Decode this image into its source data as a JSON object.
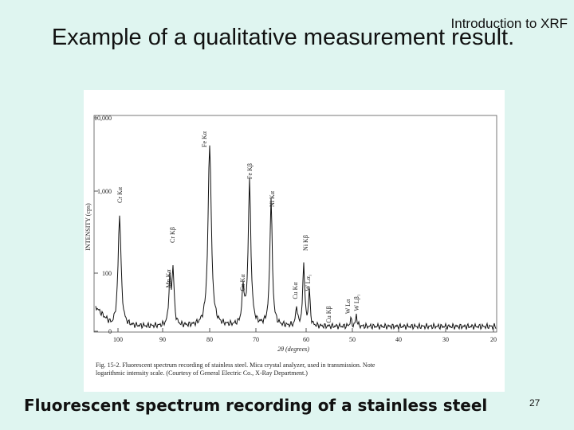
{
  "header": {
    "title": "Example of a qualitative measurement result.",
    "section": "Introduction to XRF"
  },
  "figure": {
    "y_axis_label": "INTENSITY (cps)",
    "x_axis_label": "2θ (degrees)",
    "y_ticks": [
      "10,000",
      "1,000",
      100,
      0
    ],
    "x_ticks": [
      100,
      90,
      80,
      70,
      60,
      50,
      40,
      30,
      20
    ],
    "peak_labels": [
      "Cr Kα",
      "Mn Kα",
      "Cr Kβ",
      "Fe Kα",
      "Fe Kβ",
      "Ni Kα",
      "Co Kα",
      "Ni Kβ",
      "Cu Kα",
      "W Lα₁",
      "Cu Kβ",
      "W Lα",
      "W Lβ₁"
    ],
    "caption": [
      "Fig. 15-2.  Fluorescent spectrum recording of stainless steel.  Mica crystal analyzer, used in transmission.  Note",
      "logarithmic intensity scale.  (Courtesy of General Electric Co., X-Ray Department.)"
    ]
  },
  "caption": "Fluorescent spectrum recording of a stainless steel",
  "page_number": "27"
}
